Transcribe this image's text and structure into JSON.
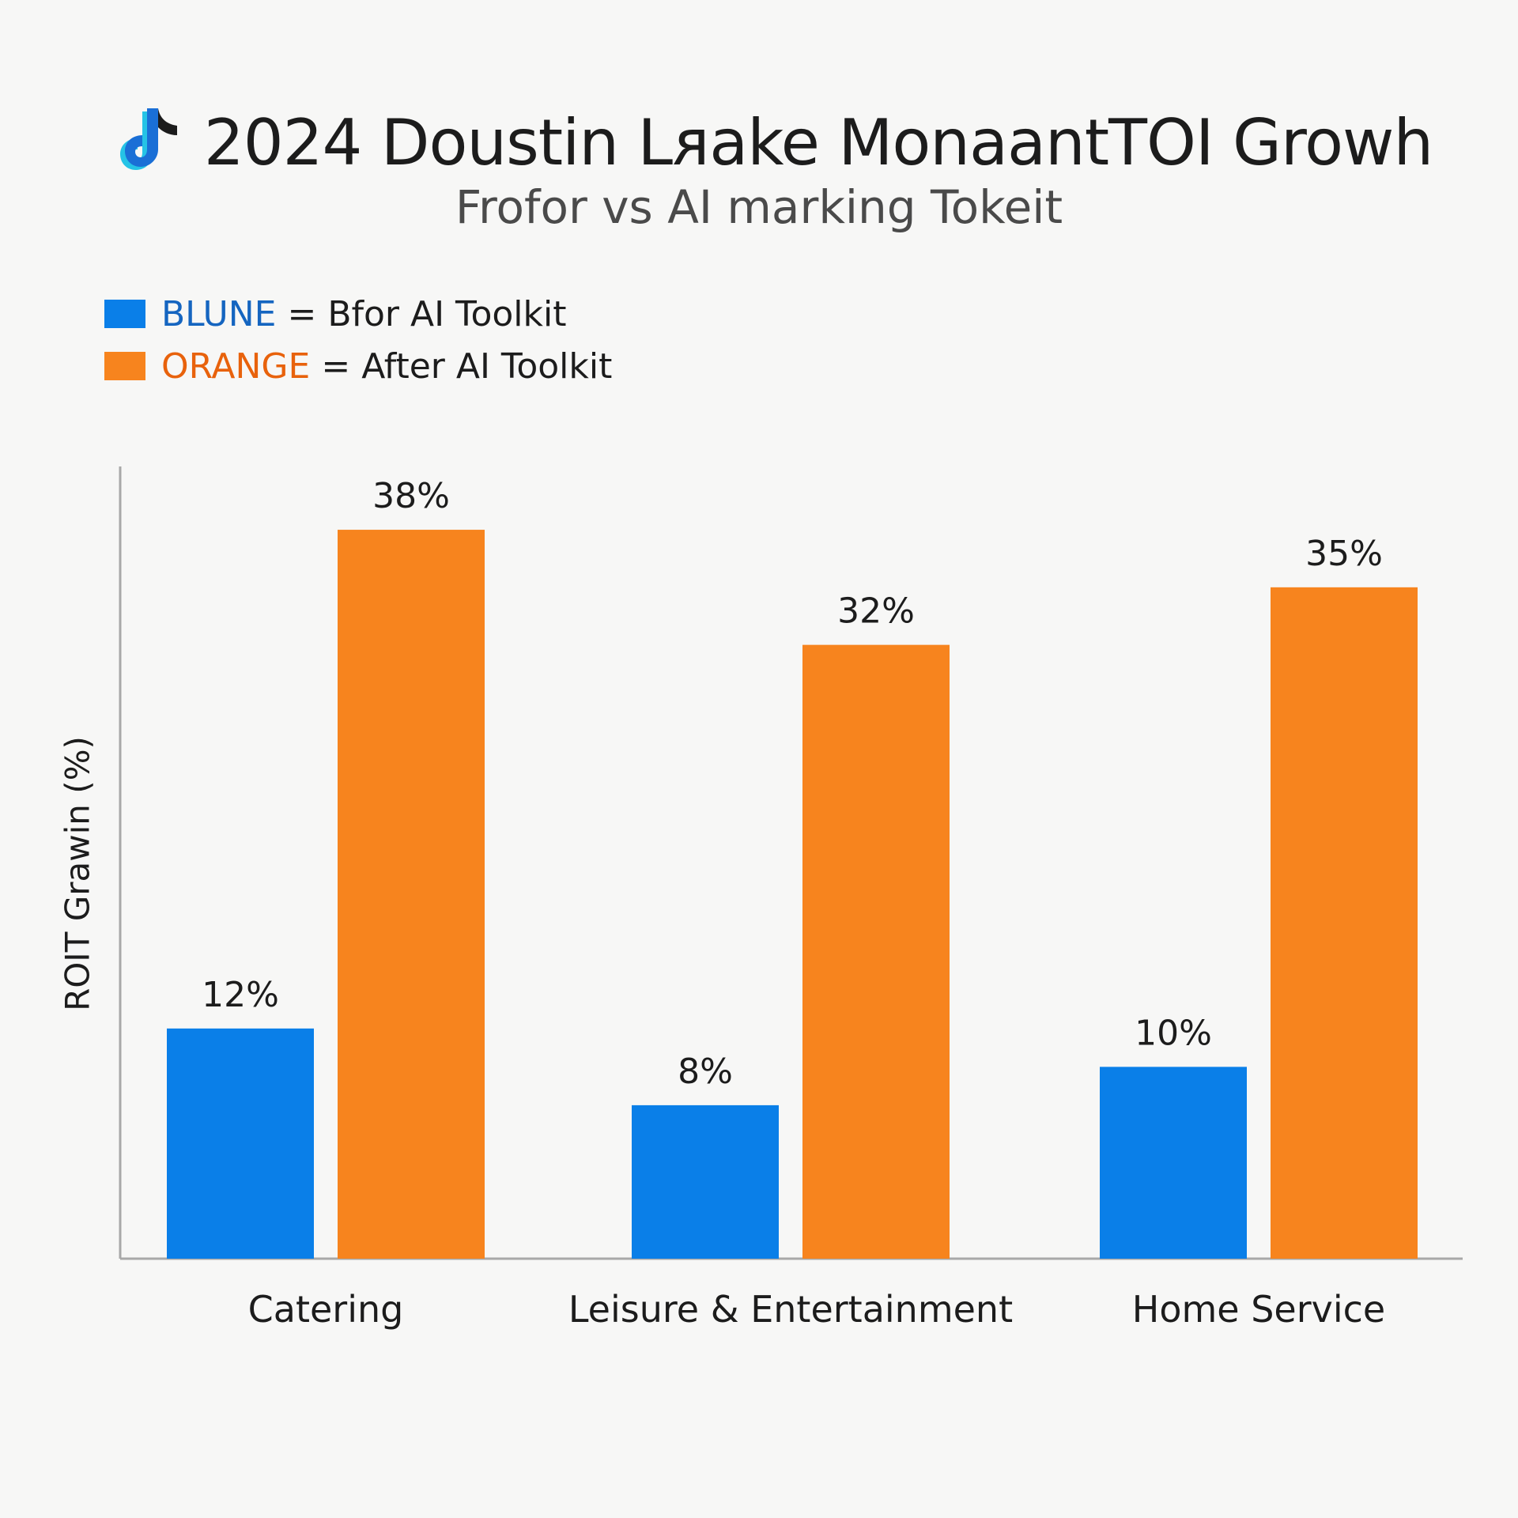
{
  "header": {
    "logo_icon": "douyin-logo-icon",
    "title": "2024 Doustin Lᴙake MonaantTOI Growh",
    "subtitle": "Frofor vs AI marking Tokeit"
  },
  "legend": [
    {
      "key": "BLUNE",
      "eq": "=",
      "desc": "Bfor AI Toolkit",
      "color": "#0a7fe8",
      "key_color": "#1565c0"
    },
    {
      "key": "ORANGE",
      "eq": "=",
      "desc": "After AI Toolkit",
      "color": "#f7841e",
      "key_color": "#e8620c"
    }
  ],
  "chart_data": {
    "type": "bar",
    "categories": [
      "Catering",
      "Leisure & Entertainment",
      "Home Service"
    ],
    "series": [
      {
        "values": [
          12,
          8,
          10
        ],
        "color": "#0a7fe8"
      },
      {
        "values": [
          38,
          32,
          35
        ],
        "color": "#f7841e"
      }
    ],
    "data_labels": [
      [
        "12%",
        "8%",
        "10%"
      ],
      [
        "38%",
        "32%",
        "35%"
      ]
    ],
    "xlabel": "",
    "ylabel": "ROIT Grawin (%)",
    "ylim": [
      0,
      41.3
    ],
    "grid": false
  }
}
